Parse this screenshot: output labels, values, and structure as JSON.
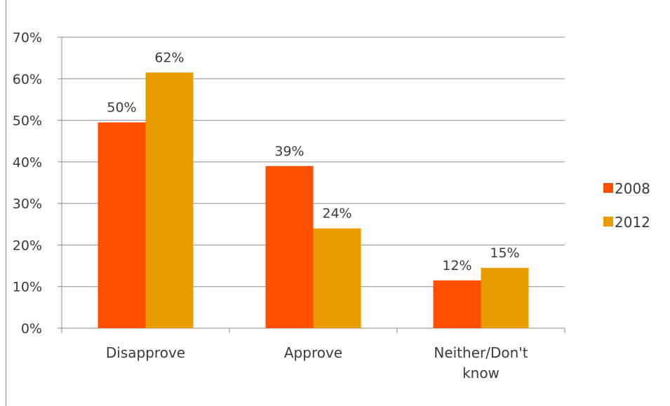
{
  "chart_data": {
    "type": "bar",
    "title": "",
    "xlabel": "",
    "ylabel": "",
    "categories": [
      "Disapprove",
      "Approve",
      "Neither/Don't know"
    ],
    "series": [
      {
        "name": "2008",
        "values": [
          49.5,
          39,
          11.5
        ],
        "labels": [
          "50%",
          "39%",
          "12%"
        ],
        "color": "#ff5000"
      },
      {
        "name": "2012",
        "values": [
          61.5,
          24,
          14.5
        ],
        "labels": [
          "62%",
          "24%",
          "15%"
        ],
        "color": "#e89c00"
      }
    ],
    "ylim": [
      0,
      70
    ],
    "yticks": [
      0,
      10,
      20,
      30,
      40,
      50,
      60,
      70
    ],
    "ytick_labels": [
      "0%",
      "10%",
      "20%",
      "30%",
      "40%",
      "50%",
      "60%",
      "70%"
    ],
    "grid": true,
    "legend_position": "right"
  }
}
